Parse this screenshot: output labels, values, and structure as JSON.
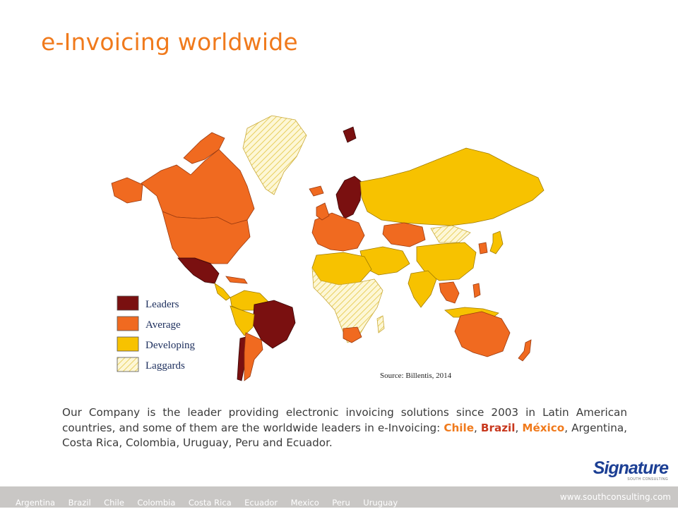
{
  "page": {
    "title": "e-Invoicing worldwide"
  },
  "map": {
    "legend": [
      {
        "label": "Leaders",
        "color": "#7a1010"
      },
      {
        "label": "Average",
        "color": "#f06a20"
      },
      {
        "label": "Developing",
        "color": "#f7c200"
      },
      {
        "label": "Laggards",
        "color": "#fbf0b0"
      }
    ],
    "source": "Source: Billentis, 2014"
  },
  "description": {
    "text_before": "Our Company is the leader providing electronic invoicing solutions since 2003 in Latin American countries, and some of them are the worldwide leaders in e-Invoicing: ",
    "chile": "Chile",
    "sep1": ", ",
    "brazil": "Brazil",
    "sep2": ", ",
    "mexico": "México",
    "text_after": ", Argentina, Costa Rica, Colombia, Uruguay, Peru and Ecuador."
  },
  "logo": {
    "name": "Signature",
    "tagline": "SOUTH CONSULTING"
  },
  "footer": {
    "countries": [
      "Argentina",
      "Brazil",
      "Chile",
      "Colombia",
      "Costa Rica",
      "Ecuador",
      "Mexico",
      "Peru",
      "Uruguay"
    ],
    "url": "www.southconsulting.com"
  }
}
